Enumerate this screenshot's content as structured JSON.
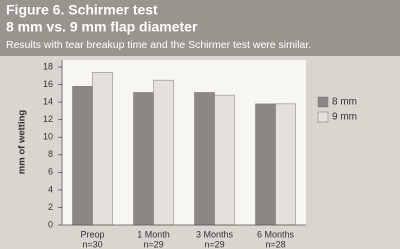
{
  "chart_data": {
    "type": "bar",
    "title": "Figure 6. Schirmer test",
    "subtitle": "8 mm vs. 9 mm flap diameter",
    "caption": "Results with tear breakup time and the Schirmer test were similar.",
    "y_label": "mm of wetting",
    "categories": [
      "Preop",
      "1 Month",
      "3 Months",
      "6 Months"
    ],
    "category_counts": [
      "n=30",
      "n=29",
      "n=29",
      "n=28"
    ],
    "series": [
      {
        "name": "8 mm",
        "color": "#8c8782",
        "values": [
          15.8,
          15.1,
          15.1,
          13.8
        ]
      },
      {
        "name": "9 mm",
        "color": "#e4e1dc",
        "values": [
          17.4,
          16.5,
          14.8,
          13.8
        ]
      }
    ],
    "ylim": [
      0,
      18
    ],
    "yticks": [
      0,
      2,
      4,
      6,
      8,
      10,
      12,
      14,
      16,
      18
    ],
    "grid": false,
    "legend": "right"
  }
}
